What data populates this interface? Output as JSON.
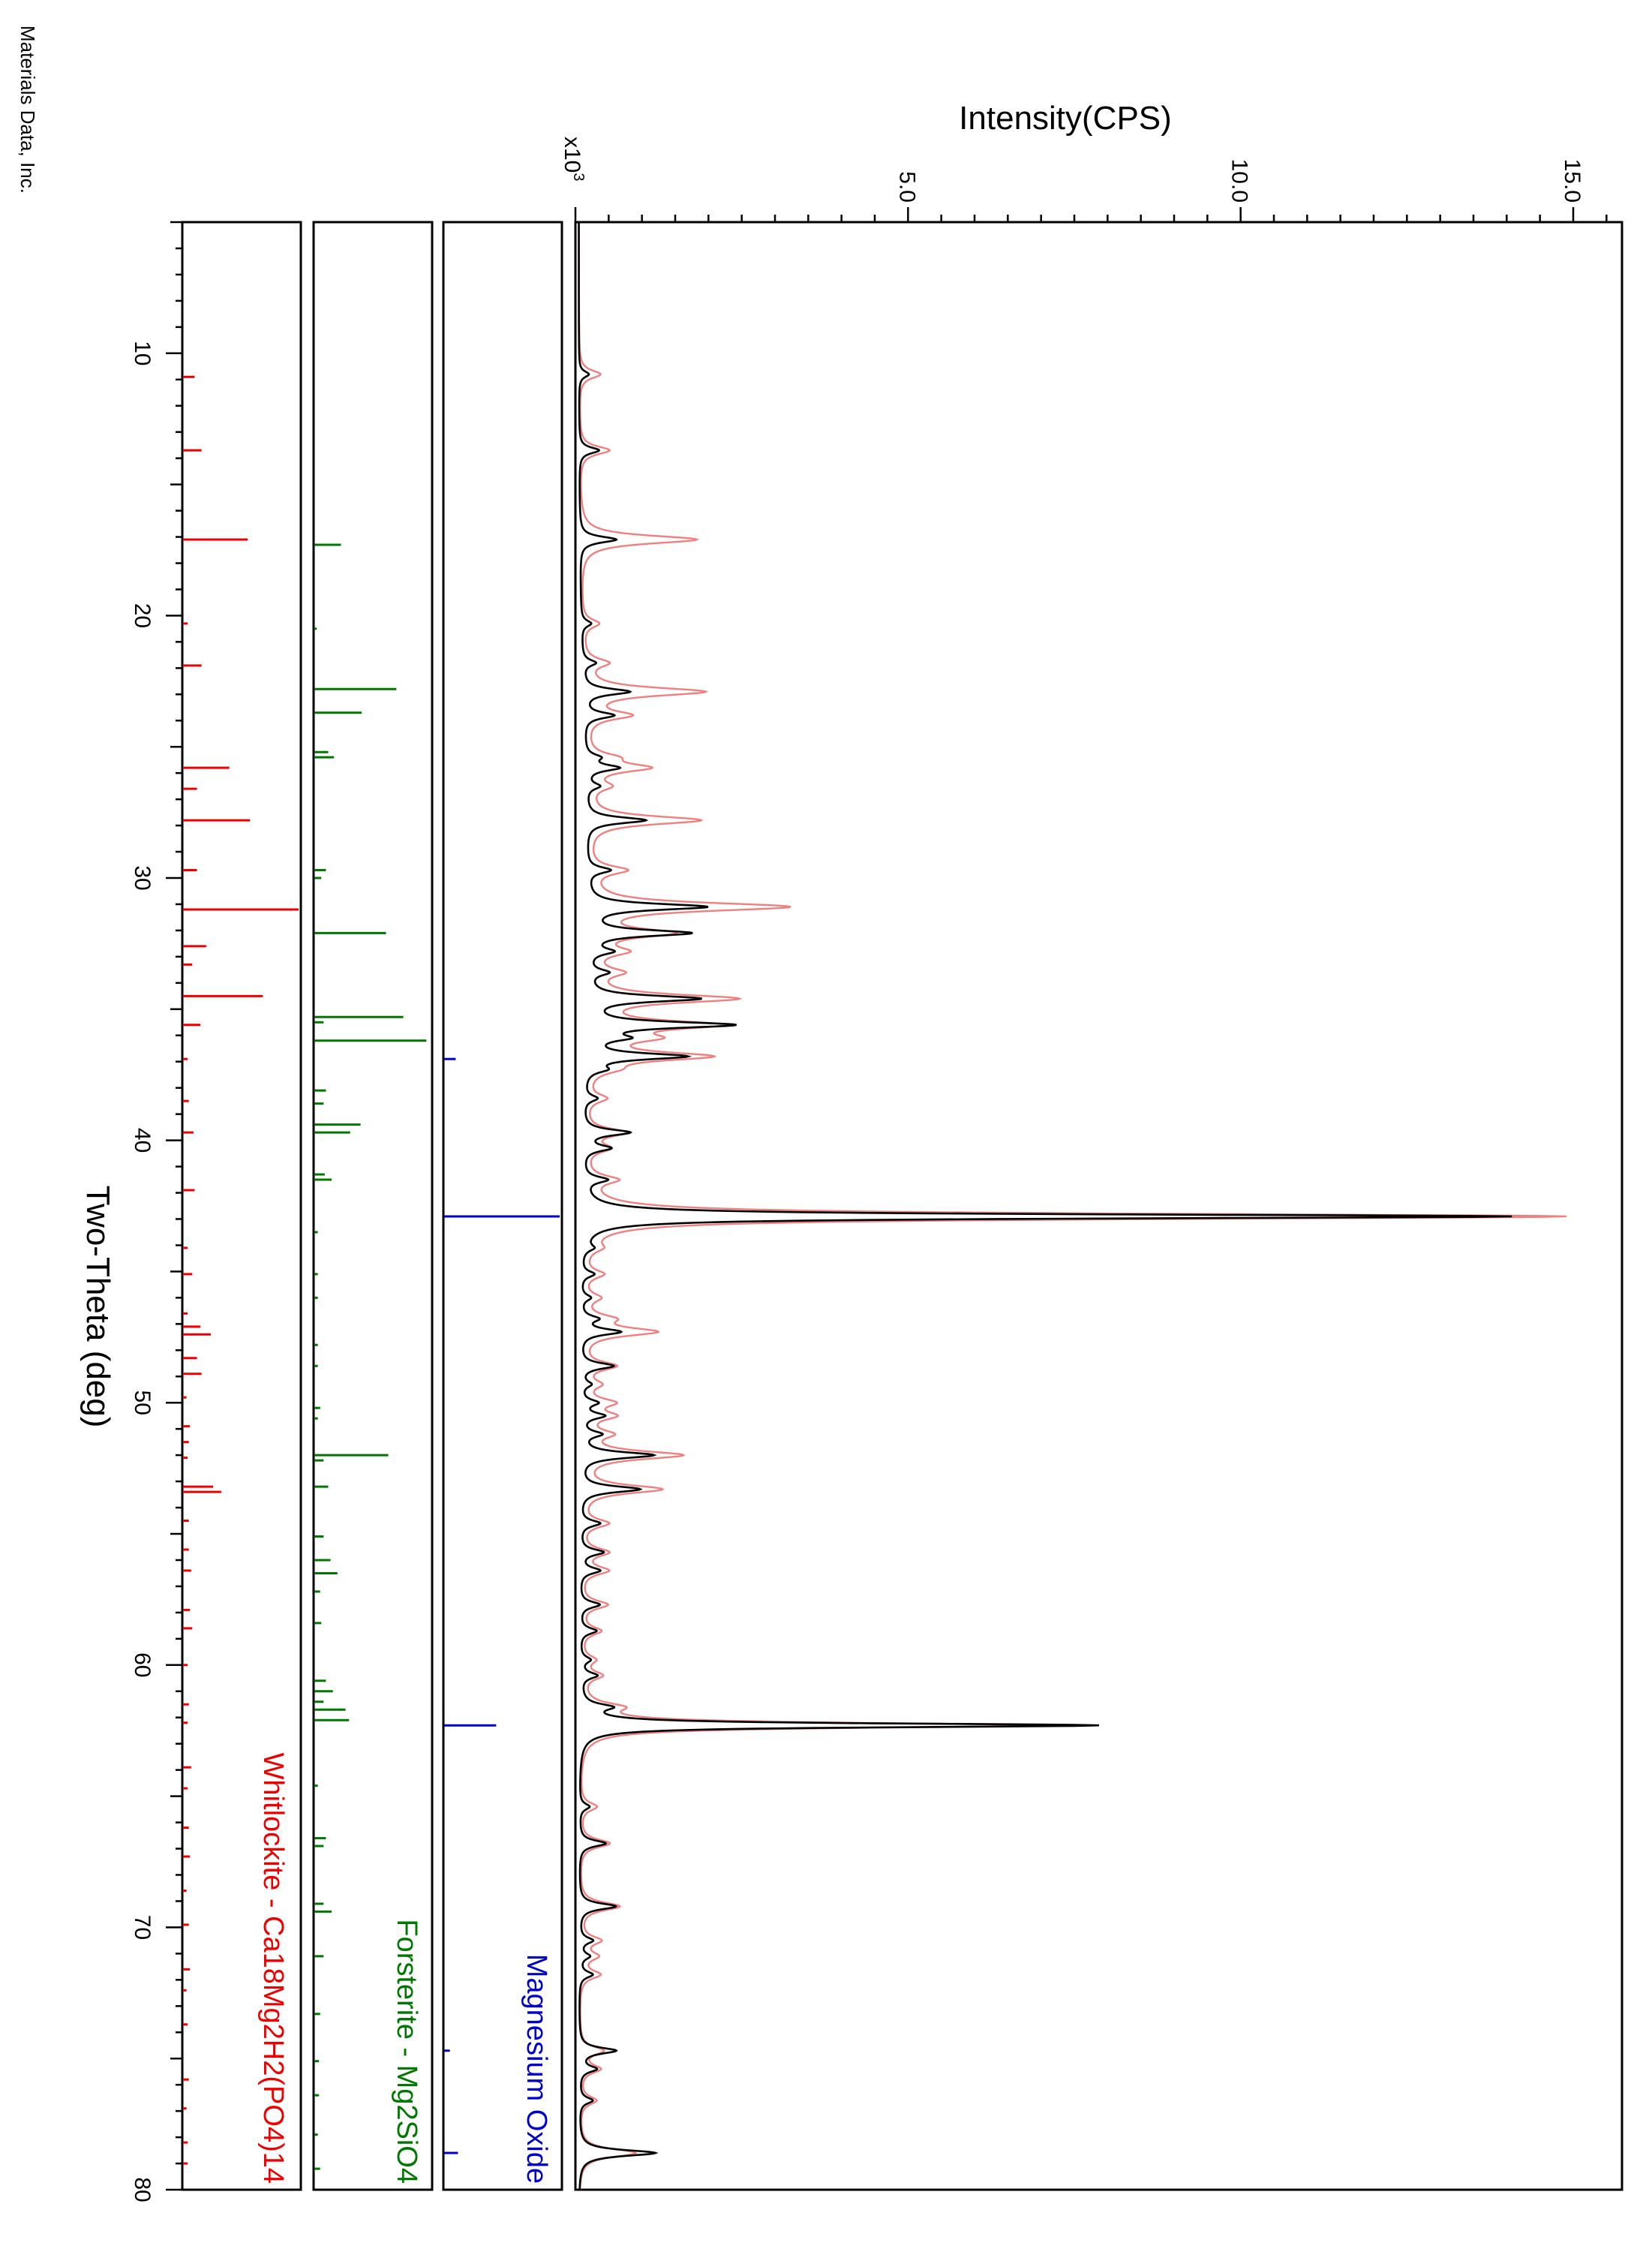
{
  "credit": "Materials Data, Inc.",
  "colors": {
    "measured": "#000000",
    "fit": "#f08080",
    "magnesium_oxide": "#0000cc",
    "forsterite": "#007700",
    "whitlockite": "#ee0000",
    "frame": "#000000"
  },
  "chart_data": {
    "type": "line",
    "orientation": "rotated-90-clockwise",
    "xlabel": "Two-Theta (deg)",
    "ylabel": "Intensity(CPS)",
    "y_multiplier_label": "x10",
    "y_multiplier_exp": "3",
    "xlim": [
      5,
      80
    ],
    "ylim": [
      0,
      16
    ],
    "x_ticks": [
      10,
      20,
      30,
      40,
      50,
      60,
      70,
      80
    ],
    "x_tick_labels": [
      "10",
      "20",
      "30",
      "40",
      "50",
      "60",
      "70",
      "80"
    ],
    "y_ticks": [
      5,
      10,
      15
    ],
    "y_tick_labels": [
      "5.0",
      "10.0",
      "15.0"
    ],
    "baseline": 0.05,
    "background": 0.1,
    "peaks": [
      [
        10.8,
        0.15,
        0.32
      ],
      [
        13.7,
        0.3,
        0.45
      ],
      [
        17.1,
        0.55,
        1.75
      ],
      [
        20.3,
        0.15,
        0.25
      ],
      [
        21.8,
        0.2,
        0.35
      ],
      [
        22.9,
        0.7,
        1.8
      ],
      [
        23.8,
        0.45,
        0.65
      ],
      [
        25.4,
        0.2,
        0.35
      ],
      [
        25.8,
        0.5,
        0.9
      ],
      [
        26.5,
        0.2,
        0.3
      ],
      [
        27.8,
        0.9,
        1.7
      ],
      [
        29.7,
        0.35,
        0.55
      ],
      [
        31.1,
        1.8,
        3.0
      ],
      [
        32.1,
        1.55,
        1.2
      ],
      [
        32.8,
        0.35,
        0.5
      ],
      [
        33.6,
        0.3,
        0.45
      ],
      [
        34.6,
        1.7,
        2.2
      ],
      [
        35.6,
        2.2,
        1.9
      ],
      [
        36.1,
        0.5,
        0.8
      ],
      [
        36.8,
        1.5,
        1.8
      ],
      [
        37.3,
        0.25,
        0.3
      ],
      [
        38.4,
        0.2,
        0.3
      ],
      [
        39.7,
        0.7,
        0.6
      ],
      [
        40.3,
        0.4,
        0.35
      ],
      [
        41.5,
        0.35,
        0.45
      ],
      [
        42.9,
        14.0,
        14.8
      ],
      [
        44.1,
        0.15,
        0.2
      ],
      [
        45.1,
        0.2,
        0.3
      ],
      [
        46.0,
        0.15,
        0.25
      ],
      [
        46.8,
        0.25,
        0.4
      ],
      [
        47.3,
        0.6,
        1.1
      ],
      [
        48.6,
        0.5,
        0.5
      ],
      [
        49.3,
        0.15,
        0.25
      ],
      [
        50.0,
        0.25,
        0.45
      ],
      [
        50.5,
        0.35,
        0.45
      ],
      [
        51.2,
        0.3,
        0.4
      ],
      [
        52.0,
        1.1,
        1.5
      ],
      [
        53.3,
        0.9,
        1.2
      ],
      [
        54.6,
        0.3,
        0.4
      ],
      [
        55.7,
        0.35,
        0.4
      ],
      [
        56.4,
        0.3,
        0.4
      ],
      [
        57.7,
        0.3,
        0.4
      ],
      [
        58.7,
        0.25,
        0.3
      ],
      [
        59.8,
        0.15,
        0.2
      ],
      [
        60.4,
        0.25,
        0.3
      ],
      [
        61.6,
        0.4,
        0.5
      ],
      [
        62.3,
        7.8,
        6.8
      ],
      [
        65.4,
        0.15,
        0.25
      ],
      [
        66.8,
        0.4,
        0.45
      ],
      [
        69.2,
        0.55,
        0.6
      ],
      [
        70.5,
        0.2,
        0.3
      ],
      [
        71.1,
        0.15,
        0.25
      ],
      [
        71.8,
        0.2,
        0.3
      ],
      [
        74.7,
        0.55,
        0.35
      ],
      [
        75.4,
        0.25,
        0.3
      ],
      [
        76.6,
        0.2,
        0.25
      ],
      [
        78.6,
        1.15,
        0.85
      ]
    ],
    "reference_patterns": [
      {
        "name": "Magnesium Oxide",
        "color": "magnesium_oxide",
        "sticks": [
          [
            36.9,
            10
          ],
          [
            42.9,
            100
          ],
          [
            62.3,
            45
          ],
          [
            74.7,
            5
          ],
          [
            78.6,
            12
          ]
        ]
      },
      {
        "name": "Forsterite - Mg2SiO4",
        "color": "forsterite",
        "sticks": [
          [
            17.3,
            23
          ],
          [
            20.5,
            2
          ],
          [
            22.8,
            71
          ],
          [
            23.7,
            41
          ],
          [
            25.2,
            12
          ],
          [
            25.4,
            17
          ],
          [
            29.7,
            10
          ],
          [
            30.0,
            6
          ],
          [
            32.1,
            62
          ],
          [
            35.3,
            77
          ],
          [
            35.5,
            8
          ],
          [
            36.2,
            97
          ],
          [
            38.1,
            10
          ],
          [
            38.6,
            8
          ],
          [
            39.4,
            40
          ],
          [
            39.7,
            31
          ],
          [
            41.3,
            9
          ],
          [
            41.5,
            15
          ],
          [
            43.5,
            3
          ],
          [
            45.1,
            3
          ],
          [
            46.0,
            3
          ],
          [
            47.8,
            3
          ],
          [
            48.6,
            3
          ],
          [
            50.2,
            5
          ],
          [
            50.6,
            3
          ],
          [
            52.0,
            64
          ],
          [
            52.2,
            8
          ],
          [
            53.2,
            12
          ],
          [
            55.1,
            8
          ],
          [
            56.0,
            14
          ],
          [
            56.5,
            20
          ],
          [
            57.2,
            5
          ],
          [
            58.4,
            6
          ],
          [
            60.6,
            10
          ],
          [
            61.0,
            16
          ],
          [
            61.4,
            8
          ],
          [
            61.7,
            27
          ],
          [
            62.1,
            30
          ],
          [
            64.6,
            3
          ],
          [
            66.6,
            10
          ],
          [
            66.9,
            8
          ],
          [
            69.1,
            8
          ],
          [
            69.4,
            15
          ],
          [
            71.1,
            8
          ],
          [
            73.3,
            5
          ],
          [
            75.1,
            4
          ],
          [
            76.4,
            4
          ],
          [
            77.9,
            3
          ],
          [
            79.2,
            5
          ]
        ]
      },
      {
        "name": "Whitlockite - Ca18Mg2H2(PO4)14",
        "color": "whitlockite",
        "sticks": [
          [
            10.9,
            10
          ],
          [
            13.7,
            16
          ],
          [
            17.1,
            56
          ],
          [
            20.3,
            4
          ],
          [
            21.9,
            16
          ],
          [
            25.8,
            40
          ],
          [
            26.6,
            12
          ],
          [
            27.8,
            58
          ],
          [
            29.7,
            12
          ],
          [
            31.2,
            100
          ],
          [
            32.6,
            20
          ],
          [
            33.3,
            8
          ],
          [
            34.5,
            69
          ],
          [
            35.6,
            15
          ],
          [
            36.9,
            4
          ],
          [
            38.5,
            5
          ],
          [
            39.7,
            9
          ],
          [
            41.9,
            10
          ],
          [
            44.1,
            4
          ],
          [
            45.1,
            8
          ],
          [
            46.6,
            4
          ],
          [
            47.1,
            15
          ],
          [
            47.4,
            24
          ],
          [
            48.3,
            12
          ],
          [
            48.9,
            16
          ],
          [
            49.8,
            3
          ],
          [
            50.9,
            6
          ],
          [
            51.5,
            5
          ],
          [
            52.1,
            4
          ],
          [
            53.2,
            26
          ],
          [
            53.4,
            33
          ],
          [
            54.5,
            5
          ],
          [
            55.6,
            5
          ],
          [
            56.4,
            7
          ],
          [
            57.9,
            6
          ],
          [
            58.6,
            8
          ],
          [
            60.0,
            4
          ],
          [
            61.5,
            5
          ],
          [
            62.2,
            4
          ],
          [
            63.9,
            7
          ],
          [
            64.7,
            4
          ],
          [
            66.2,
            5
          ],
          [
            67.3,
            6
          ],
          [
            68.6,
            3
          ],
          [
            69.9,
            5
          ],
          [
            71.6,
            6
          ],
          [
            72.4,
            3
          ],
          [
            73.7,
            4
          ],
          [
            75.8,
            5
          ],
          [
            76.9,
            3
          ],
          [
            78.2,
            4
          ],
          [
            79.0,
            4
          ]
        ]
      }
    ]
  }
}
